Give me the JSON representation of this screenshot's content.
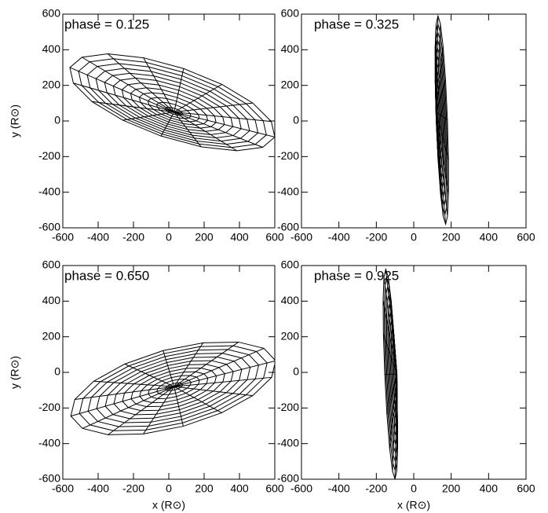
{
  "chart_data": [
    {
      "type": "wireframe",
      "title": "phase = 0.125",
      "ylabel": "y (R⊙)",
      "xlim": [
        -600,
        600
      ],
      "ylim": [
        -600,
        600
      ],
      "xticks": [
        -600,
        -400,
        -200,
        0,
        200,
        400,
        600
      ],
      "yticks": [
        -600,
        -400,
        -200,
        0,
        200,
        400,
        600
      ],
      "disk": {
        "hub": [
          30,
          50
        ],
        "center": [
          20,
          105
        ],
        "semi_major": 612,
        "semi_minor": 200,
        "angle": -18.6,
        "rings": 12,
        "spokes": 16
      }
    },
    {
      "type": "wireframe",
      "title": "phase = 0.325",
      "xlim": [
        -600,
        600
      ],
      "ylim": [
        -600,
        600
      ],
      "xticks": [
        -600,
        -400,
        -200,
        0,
        200,
        400,
        600
      ],
      "yticks": [
        -600,
        -400,
        -200,
        0,
        200,
        400,
        600
      ],
      "disk": {
        "hub": [
          120,
          50
        ],
        "center": [
          150,
          5
        ],
        "semi_major": 585,
        "semi_minor": 30,
        "angle": -88,
        "rings": 12,
        "spokes": 16
      }
    },
    {
      "type": "wireframe",
      "title": "phase = 0.650",
      "ylabel": "y (R⊙)",
      "xlabel": "x (R⊙)",
      "xlim": [
        -600,
        600
      ],
      "ylim": [
        -600,
        600
      ],
      "xticks": [
        -600,
        -400,
        -200,
        0,
        200,
        400,
        600
      ],
      "yticks": [
        -600,
        -400,
        -200,
        0,
        200,
        400,
        600
      ],
      "disk": {
        "hub": [
          30,
          -80
        ],
        "center": [
          25,
          -90
        ],
        "semi_major": 600,
        "semi_minor": 220,
        "angle": 15,
        "rings": 12,
        "spokes": 16
      }
    },
    {
      "type": "wireframe",
      "title": "phase = 0.925",
      "xlabel": "x (R⊙)",
      "xlim": [
        -600,
        600
      ],
      "ylim": [
        -600,
        600
      ],
      "xticks": [
        -600,
        -400,
        -200,
        0,
        200,
        400,
        600
      ],
      "yticks": [
        -600,
        -400,
        -200,
        0,
        200,
        400,
        600
      ],
      "disk": {
        "hub": [
          -90,
          -10
        ],
        "center": [
          -125,
          -10
        ],
        "semi_major": 590,
        "semi_minor": 30,
        "angle": -87.6,
        "rings": 12,
        "spokes": 16
      }
    }
  ]
}
